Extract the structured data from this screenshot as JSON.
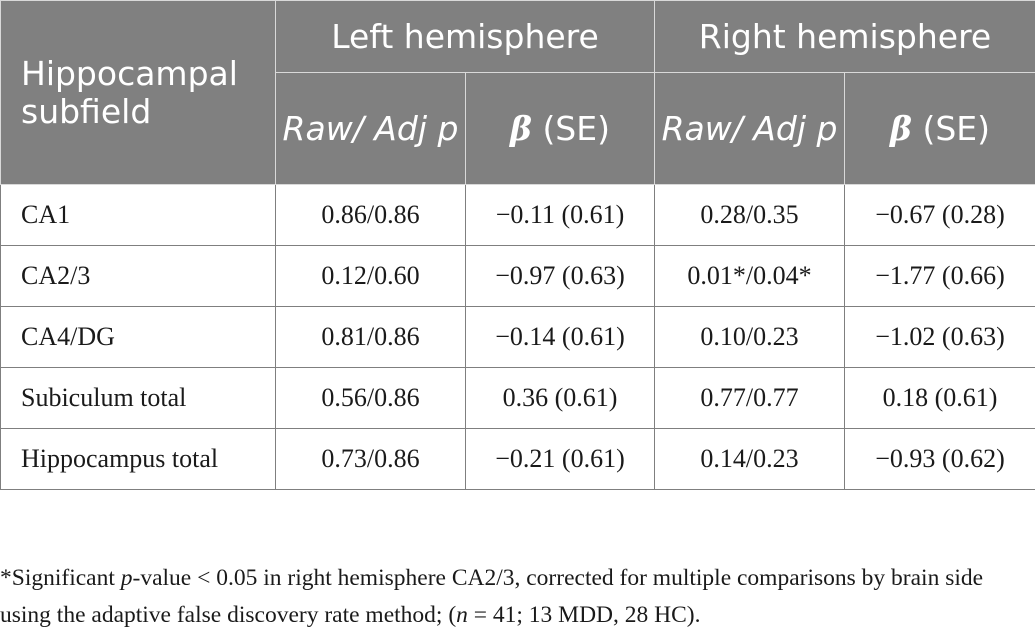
{
  "table": {
    "row_header": "Hippocampal subfield",
    "groups": [
      "Left hemisphere",
      "Right hemisphere"
    ],
    "subheader_p": "Raw/ Adj p",
    "subheader_beta_symbol": "β",
    "subheader_beta_rest": "(SE)",
    "rows": [
      {
        "name": "CA1",
        "cells": [
          "0.86/0.86",
          "−0.11 (0.61)",
          "0.28/0.35",
          "−0.67 (0.28)"
        ]
      },
      {
        "name": "CA2/3",
        "cells": [
          "0.12/0.60",
          "−0.97 (0.63)",
          "0.01*/0.04*",
          "−1.77 (0.66)"
        ]
      },
      {
        "name": "CA4/DG",
        "cells": [
          "0.81/0.86",
          "−0.14 (0.61)",
          "0.10/0.23",
          "−1.02 (0.63)"
        ]
      },
      {
        "name": "Subiculum total",
        "cells": [
          "0.56/0.86",
          "0.36 (0.61)",
          "0.77/0.77",
          "0.18 (0.61)"
        ]
      },
      {
        "name": "Hippocampus total",
        "cells": [
          "0.73/0.86",
          "−0.21 (0.61)",
          "0.14/0.23",
          "−0.93 (0.62)"
        ]
      }
    ]
  },
  "footnote": {
    "part1": "*Significant ",
    "p_symbol": "p",
    "part2": "-value < 0.05 in right hemisphere CA2/3, corrected for multiple comparisons by brain side using the adaptive false discovery rate method; (",
    "n_symbol": "n",
    "part3": " = 41; 13 MDD, 28 HC)."
  }
}
